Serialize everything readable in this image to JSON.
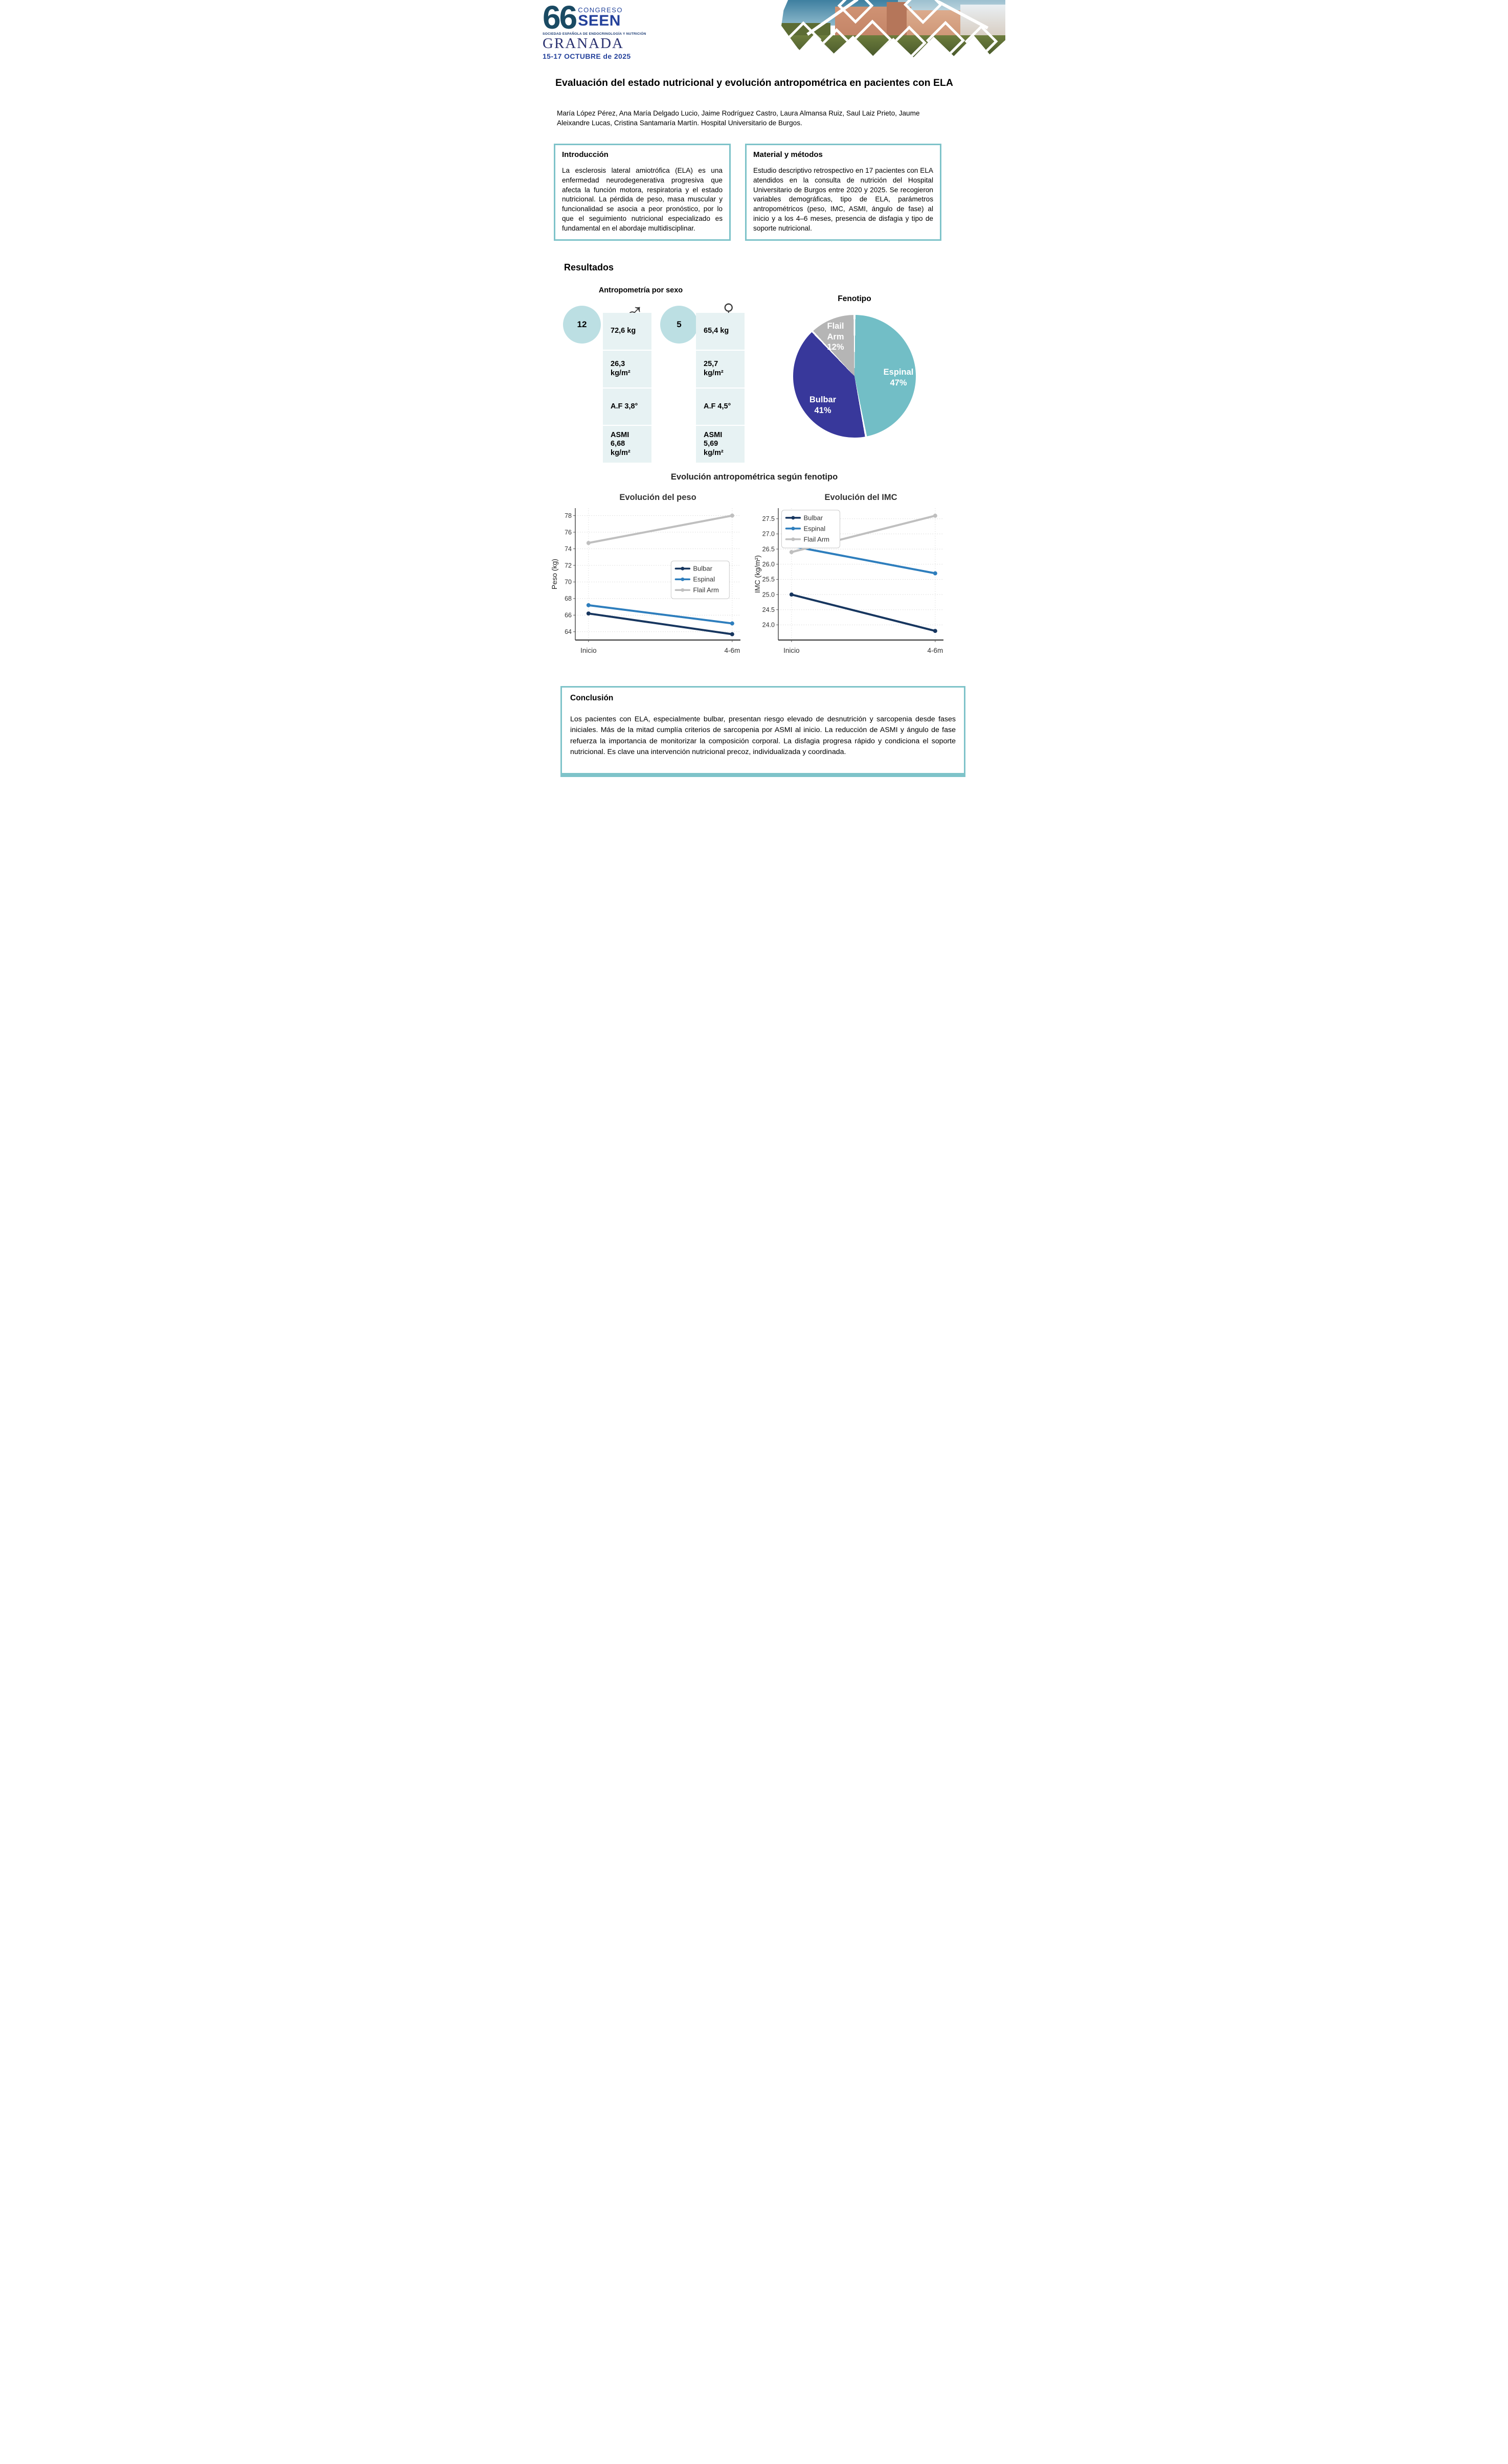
{
  "logo": {
    "number": "66",
    "congreso": "CONGRESO",
    "seen": "SEEN",
    "subtitle": "SOCIEDAD ESPAÑOLA DE ENDOCRINOLOGÍA Y NUTRICIÓN",
    "city": "GRANADA",
    "dates": "15-17 OCTUBRE de 2025"
  },
  "header": {
    "title": "Evaluación del estado nutricional y evolución antropométrica en pacientes con ELA",
    "authors": "María López Pérez, Ana María Delgado Lucio, Jaime Rodríguez Castro, Laura Almansa Ruiz, Saul Laiz Prieto, Jaume Aleixandre Lucas, Cristina Santamaría Martín. Hospital Universitario de Burgos."
  },
  "sections": {
    "intro": {
      "heading": "Introducción",
      "body": "La esclerosis lateral amiotrófica (ELA) es una enfermedad neurodegenerativa progresiva que afecta la función motora, respiratoria y el estado nutricional. La pérdida de peso, masa muscular y funcionalidad se asocia a peor pronóstico, por lo que el seguimiento nutricional especializado es fundamental en el abordaje multidisciplinar."
    },
    "methods": {
      "heading": "Material y métodos",
      "body": "Estudio descriptivo retrospectivo en 17 pacientes con ELA atendidos en la consulta de nutrición del Hospital Universitario de Burgos entre 2020 y 2025. Se recogieron variables demográficas, tipo de ELA, parámetros antropométricos (peso, IMC, ASMI, ángulo de fase) al inicio y a los 4–6 meses, presencia de disfagia y tipo de soporte nutricional."
    },
    "results": {
      "heading": "Resultados",
      "anthropometry": {
        "title": "Antropometría por sexo",
        "icons": {
          "male": "♂",
          "female": "♀"
        },
        "male": {
          "count": "12",
          "rows": [
            "72,6 kg",
            "26,3\nkg/m²",
            "A.F 3,8°",
            "ASMI\n6,68\nkg/m²"
          ]
        },
        "female": {
          "count": "5",
          "rows": [
            "65,4 kg",
            "25,7\nkg/m²",
            "A.F 4,5°",
            "ASMI\n5,69\nkg/m²"
          ]
        }
      },
      "evolution_title": "Evolución antropométrica según fenotipo"
    },
    "conclusion": {
      "heading": "Conclusión",
      "body": "Los pacientes con ELA, especialmente bulbar, presentan riesgo elevado de desnutrición y sarcopenia desde fases iniciales. Más de la mitad cumplía criterios de sarcopenia por ASMI al inicio. La reducción de ASMI y ángulo de fase refuerza la importancia de monitorizar la composición corporal. La disfagia progresa rápido y condiciona el soporte nutricional. Es clave una intervención nutricional precoz, individualizada y coordinada."
    }
  },
  "chart_data": [
    {
      "type": "pie",
      "title": "Fenotipo",
      "labels": [
        "Espinal",
        "Bulbar",
        "Flail Arm"
      ],
      "values": [
        47,
        41,
        12
      ],
      "unit": "%",
      "colors": [
        "#72bec6",
        "#38389b",
        "#b5b5b5"
      ],
      "display_labels": [
        "Espinal\n47%",
        "Bulbar\n41%",
        "Flail\nArm\n12%"
      ],
      "start_angle_deg": 0,
      "direction": "clockwise"
    },
    {
      "type": "line",
      "title": "Evolución del peso",
      "xlabel": "",
      "ylabel": "Peso (kg)",
      "x": [
        "Inicio",
        "4-6m"
      ],
      "ylim": [
        63.0,
        78.9
      ],
      "yticks": [
        64,
        66,
        68,
        70,
        72,
        74,
        76,
        78
      ],
      "ytick_labels": [
        "64",
        "66",
        "68",
        "70",
        "72",
        "74",
        "76",
        "78"
      ],
      "grid": true,
      "legend_pos": {
        "x": 0.58,
        "y": 0.4
      },
      "series": [
        {
          "name": "Bulbar",
          "color": "#17365f",
          "values": [
            66.2,
            63.7
          ]
        },
        {
          "name": "Espinal",
          "color": "#2e7ebd",
          "values": [
            67.2,
            65.0
          ]
        },
        {
          "name": "Flail Arm",
          "color": "#bfbfbf",
          "values": [
            74.7,
            78.0
          ]
        }
      ]
    },
    {
      "type": "line",
      "title": "Evolución del IMC",
      "xlabel": "",
      "ylabel": "IMC (kg/m²)",
      "x": [
        "Inicio",
        "4-6m"
      ],
      "ylim": [
        23.5,
        27.85
      ],
      "yticks": [
        24.0,
        24.5,
        25.0,
        25.5,
        26.0,
        26.5,
        27.0,
        27.5
      ],
      "ytick_labels": [
        "24.0",
        "24.5",
        "25.0",
        "25.5",
        "26.0",
        "26.5",
        "27.0",
        "27.5"
      ],
      "grid": true,
      "legend_pos": {
        "x": 0.02,
        "y": 0.015
      },
      "series": [
        {
          "name": "Bulbar",
          "color": "#17365f",
          "values": [
            25.0,
            23.8
          ]
        },
        {
          "name": "Espinal",
          "color": "#2e7ebd",
          "values": [
            26.6,
            25.7
          ]
        },
        {
          "name": "Flail Arm",
          "color": "#bfbfbf",
          "values": [
            26.4,
            27.6
          ]
        }
      ]
    }
  ],
  "theme": {
    "box_border": "#7ec3c9",
    "circle_fill": "#bcdfe3",
    "column_fill": "#e7f2f3",
    "pie_espinal": "#72bec6",
    "pie_bulbar": "#38389b",
    "pie_flail": "#b5b5b5"
  }
}
